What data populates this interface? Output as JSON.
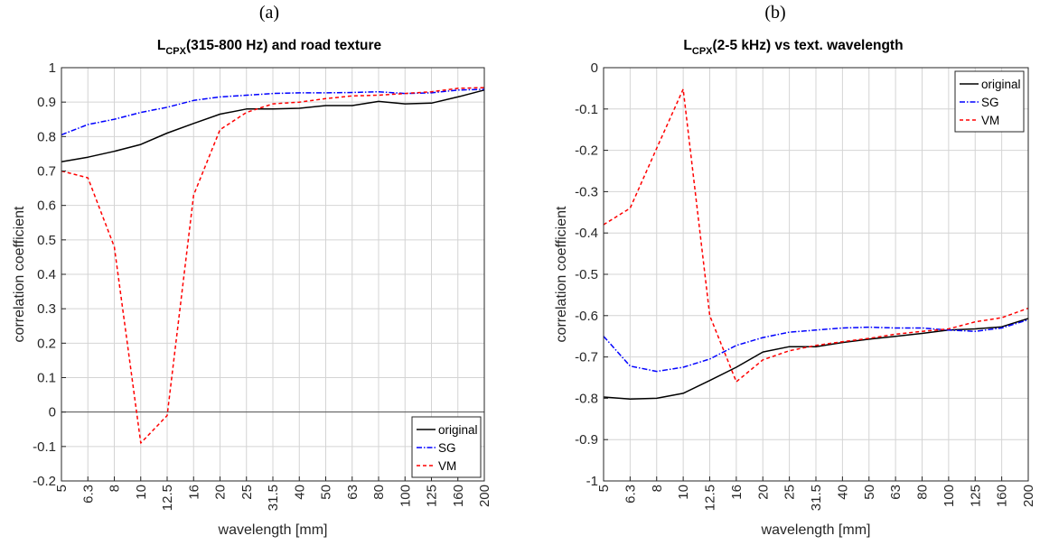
{
  "figure": {
    "panel_labels": [
      "(a)",
      "(b)"
    ]
  },
  "chart_data": [
    {
      "type": "line",
      "panel": "(a)",
      "title": {
        "main": "L",
        "subscript": "CPX",
        "rest": "(315-800 Hz) and road texture"
      },
      "xlabel": "wavelength [mm]",
      "ylabel": "correlation coefficient",
      "categories": [
        "5",
        "6.3",
        "8",
        "10",
        "12.5",
        "16",
        "20",
        "25",
        "31.5",
        "40",
        "50",
        "63",
        "80",
        "100",
        "125",
        "160",
        "200"
      ],
      "ylim": [
        -0.2,
        1
      ],
      "yticks": [
        "-0.2",
        "-0.1",
        "0",
        "0.1",
        "0.2",
        "0.3",
        "0.4",
        "0.5",
        "0.6",
        "0.7",
        "0.8",
        "0.9",
        "1"
      ],
      "grid": true,
      "zero_line": true,
      "legend_position": "bottom-right",
      "series": [
        {
          "name": "original",
          "color": "#000000",
          "style": "solid",
          "values": [
            0.727,
            0.74,
            0.757,
            0.777,
            0.81,
            0.838,
            0.865,
            0.88,
            0.88,
            0.882,
            0.89,
            0.89,
            0.902,
            0.895,
            0.897,
            0.915,
            0.935
          ]
        },
        {
          "name": "SG",
          "color": "#0000ff",
          "style": "dashdot",
          "values": [
            0.805,
            0.835,
            0.85,
            0.87,
            0.885,
            0.905,
            0.915,
            0.92,
            0.925,
            0.927,
            0.927,
            0.928,
            0.93,
            0.925,
            0.927,
            0.935,
            0.937
          ]
        },
        {
          "name": "VM",
          "color": "#ff0000",
          "style": "dashed",
          "values": [
            0.7,
            0.68,
            0.48,
            -0.09,
            -0.01,
            0.63,
            0.82,
            0.87,
            0.895,
            0.9,
            0.91,
            0.918,
            0.92,
            0.925,
            0.93,
            0.94,
            0.942
          ]
        }
      ]
    },
    {
      "type": "line",
      "panel": "(b)",
      "title": {
        "main": "L",
        "subscript": "CPX",
        "rest": "(2-5 kHz) vs text. wavelength"
      },
      "xlabel": "wavelength [mm]",
      "ylabel": "correlation coefficient",
      "categories": [
        "5",
        "6.3",
        "8",
        "10",
        "12.5",
        "16",
        "20",
        "25",
        "31.5",
        "40",
        "50",
        "63",
        "80",
        "100",
        "125",
        "160",
        "200"
      ],
      "ylim": [
        -1,
        0
      ],
      "yticks": [
        "-1",
        "-0.9",
        "-0.8",
        "-0.7",
        "-0.6",
        "-0.5",
        "-0.4",
        "-0.3",
        "-0.2",
        "-0.1",
        "0"
      ],
      "grid": true,
      "zero_line": false,
      "legend_position": "top-right",
      "series": [
        {
          "name": "original",
          "color": "#000000",
          "style": "solid",
          "values": [
            -0.797,
            -0.802,
            -0.8,
            -0.788,
            -0.757,
            -0.725,
            -0.688,
            -0.675,
            -0.675,
            -0.665,
            -0.657,
            -0.65,
            -0.643,
            -0.635,
            -0.632,
            -0.627,
            -0.607
          ]
        },
        {
          "name": "SG",
          "color": "#0000ff",
          "style": "dashdot",
          "values": [
            -0.65,
            -0.722,
            -0.735,
            -0.725,
            -0.705,
            -0.672,
            -0.653,
            -0.64,
            -0.635,
            -0.63,
            -0.628,
            -0.63,
            -0.63,
            -0.635,
            -0.638,
            -0.63,
            -0.61
          ]
        },
        {
          "name": "VM",
          "color": "#ff0000",
          "style": "dashed",
          "values": [
            -0.38,
            -0.34,
            -0.195,
            -0.052,
            -0.6,
            -0.76,
            -0.707,
            -0.685,
            -0.672,
            -0.663,
            -0.655,
            -0.645,
            -0.638,
            -0.632,
            -0.615,
            -0.605,
            -0.582
          ]
        }
      ]
    }
  ]
}
